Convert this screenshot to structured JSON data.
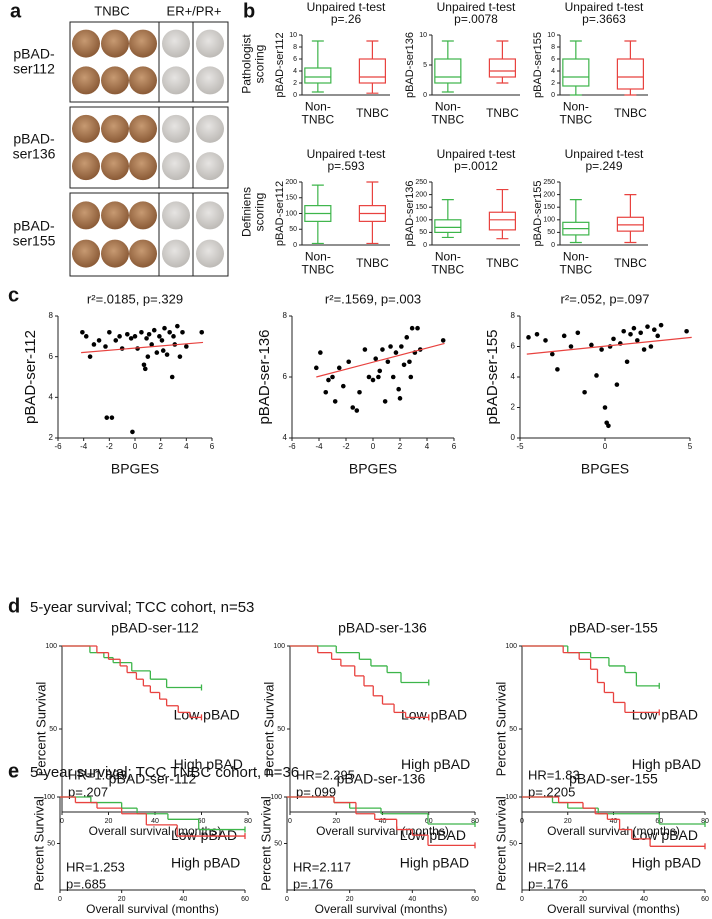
{
  "panels": {
    "a": {
      "label": "a",
      "col_headers": [
        "TNBC",
        "ER+/PR+"
      ],
      "rows": [
        "pBAD-\nser112",
        "pBAD-\nser136",
        "pBAD-\nser155"
      ]
    },
    "b": {
      "label": "b",
      "row_labels": [
        "Pathologist\nscoring",
        "Definiens\nscoring"
      ]
    },
    "c": {
      "label": "c"
    },
    "d": {
      "label": "d",
      "heading": "5-year survival; TCC cohort, n=53"
    },
    "e": {
      "label": "e",
      "heading": "5-year survival; TCC TNBC cohort, n=36"
    }
  },
  "chart_data": [
    {
      "type": "box",
      "title": "Unpaired t-test",
      "subtitle": "p=.26",
      "ylabel": "pBAD-ser112",
      "categories": [
        "Non-\nTNBC",
        "TNBC"
      ],
      "boxes": [
        {
          "min": 0.5,
          "q1": 2,
          "median": 3,
          "q3": 4.5,
          "max": 9,
          "color": "#3db54a"
        },
        {
          "min": 0.3,
          "q1": 2,
          "median": 3,
          "q3": 6,
          "max": 9,
          "color": "#e8423f"
        }
      ],
      "ylim": [
        0,
        10
      ],
      "yticks": [
        0,
        2,
        4,
        6,
        8,
        10
      ]
    },
    {
      "type": "box",
      "title": "Unpaired t-test",
      "subtitle": "p=.0078",
      "ylabel": "pBAD-ser136",
      "categories": [
        "Non-\nTNBC",
        "TNBC"
      ],
      "boxes": [
        {
          "min": 0.5,
          "q1": 2,
          "median": 3,
          "q3": 6,
          "max": 9,
          "color": "#3db54a"
        },
        {
          "min": 2,
          "q1": 3,
          "median": 4,
          "q3": 6,
          "max": 9,
          "color": "#e8423f"
        }
      ],
      "ylim": [
        0,
        10
      ],
      "yticks": [
        0,
        5,
        10
      ]
    },
    {
      "type": "box",
      "title": "Unpaired t-test",
      "subtitle": "p=.3663",
      "ylabel": "pBAD-ser155",
      "categories": [
        "Non-\nTNBC",
        "TNBC"
      ],
      "boxes": [
        {
          "min": 0,
          "q1": 1.5,
          "median": 3,
          "q3": 6,
          "max": 9,
          "color": "#3db54a"
        },
        {
          "min": 0,
          "q1": 1,
          "median": 3,
          "q3": 6,
          "max": 9,
          "color": "#e8423f"
        }
      ],
      "ylim": [
        0,
        10
      ],
      "yticks": [
        0,
        2,
        4,
        6,
        8,
        10
      ]
    },
    {
      "type": "box",
      "title": "Unpaired t-test",
      "subtitle": "p=.593",
      "ylabel": "pBAD-ser112",
      "categories": [
        "Non-\nTNBC",
        "TNBC"
      ],
      "boxes": [
        {
          "min": 5,
          "q1": 75,
          "median": 100,
          "q3": 125,
          "max": 190,
          "color": "#3db54a"
        },
        {
          "min": 5,
          "q1": 75,
          "median": 100,
          "q3": 125,
          "max": 200,
          "color": "#e8423f"
        }
      ],
      "ylim": [
        0,
        200
      ],
      "yticks": [
        0,
        50,
        100,
        150,
        200
      ]
    },
    {
      "type": "box",
      "title": "Unpaired t-test",
      "subtitle": "p=.0012",
      "ylabel": "pBAD-ser136",
      "categories": [
        "Non-\nTNBC",
        "TNBC"
      ],
      "boxes": [
        {
          "min": 30,
          "q1": 50,
          "median": 70,
          "q3": 100,
          "max": 180,
          "color": "#3db54a"
        },
        {
          "min": 25,
          "q1": 60,
          "median": 100,
          "q3": 130,
          "max": 220,
          "color": "#e8423f"
        }
      ],
      "ylim": [
        0,
        250
      ],
      "yticks": [
        0,
        50,
        100,
        150,
        200,
        250
      ]
    },
    {
      "type": "box",
      "title": "Unpaired t-test",
      "subtitle": "p=.249",
      "ylabel": "pBAD-ser155",
      "categories": [
        "Non-\nTNBC",
        "TNBC"
      ],
      "boxes": [
        {
          "min": 10,
          "q1": 40,
          "median": 65,
          "q3": 90,
          "max": 180,
          "color": "#3db54a"
        },
        {
          "min": 10,
          "q1": 55,
          "median": 80,
          "q3": 110,
          "max": 200,
          "color": "#e8423f"
        }
      ],
      "ylim": [
        0,
        250
      ],
      "yticks": [
        0,
        50,
        100,
        150,
        200,
        250
      ]
    },
    {
      "type": "scatter",
      "title": "r²=.0185, p=.329",
      "xlabel": "BPGES",
      "ylabel": "pBAD-ser-112",
      "color": "#000000",
      "x": [
        -4.1,
        -3.8,
        -3.5,
        -3.2,
        -2.8,
        -2.3,
        -2,
        -1.5,
        -1.2,
        -1,
        -0.6,
        -0.3,
        0,
        0.2,
        0.5,
        0.7,
        0.9,
        1.1,
        1.3,
        1.5,
        1.7,
        1.9,
        2.1,
        2.3,
        2.5,
        2.7,
        2.9,
        3.1,
        3.3,
        3.5,
        3.7,
        4,
        5.2,
        -2.2,
        -1.8,
        -0.2,
        0.8,
        2.2,
        3,
        1
      ],
      "values": [
        7.2,
        7,
        6,
        6.6,
        6.8,
        6.5,
        7.2,
        6.8,
        7,
        6.4,
        7.1,
        6.9,
        7,
        6.4,
        7.2,
        5.6,
        6.9,
        7.1,
        6.6,
        7.3,
        6.2,
        7,
        6.8,
        7.4,
        6.1,
        7.2,
        5,
        6.6,
        7.5,
        6,
        7.2,
        6.5,
        7.2,
        3,
        3,
        2.3,
        5.4,
        6.3,
        7,
        6
      ],
      "trendline": {
        "x": [
          -4.2,
          5.3
        ],
        "values": [
          6.2,
          6.7
        ],
        "color": "#e8423f"
      },
      "xlim": [
        -6,
        6
      ],
      "xticks": [
        -6,
        -4,
        -2,
        0,
        2,
        4,
        6
      ],
      "ylim": [
        2,
        8
      ],
      "yticks": [
        2,
        4,
        6,
        8
      ]
    },
    {
      "type": "scatter",
      "title": "r²=.1569, p=.003",
      "xlabel": "BPGES",
      "ylabel": "pBAD-ser-136",
      "color": "#000000",
      "x": [
        -4.2,
        -3.9,
        -3.5,
        -3.3,
        -3,
        -2.8,
        -2.5,
        -2.2,
        -1.8,
        -1.5,
        -1.2,
        -1,
        -0.6,
        -0.3,
        0,
        0.2,
        0.5,
        0.7,
        0.9,
        1.1,
        1.3,
        1.5,
        1.7,
        1.9,
        2.1,
        2.3,
        2.5,
        2.7,
        2.9,
        3.1,
        3.3,
        3.5,
        5.2,
        0.4,
        2,
        2.8
      ],
      "values": [
        6.3,
        6.8,
        5.5,
        5.9,
        6,
        5.2,
        6.3,
        5.7,
        6.5,
        5,
        4.9,
        5.5,
        6.9,
        6,
        5.9,
        6.6,
        6.2,
        6.9,
        5.2,
        6.5,
        7,
        6,
        6.8,
        5.6,
        7,
        6.4,
        7.3,
        6.5,
        7.6,
        6.8,
        7.6,
        6.9,
        7.2,
        6,
        5.3,
        6
      ],
      "trendline": {
        "x": [
          -4.2,
          5.3
        ],
        "values": [
          6,
          7.1
        ],
        "color": "#e8423f"
      },
      "xlim": [
        -6,
        6
      ],
      "xticks": [
        -6,
        -4,
        -2,
        0,
        2,
        4,
        6
      ],
      "ylim": [
        4,
        8
      ],
      "yticks": [
        4,
        6,
        8
      ]
    },
    {
      "type": "scatter",
      "title": "r²=.052, p=.097",
      "xlabel": "BPGES",
      "ylabel": "pBAD-ser-155",
      "color": "#000000",
      "x": [
        -4.5,
        -4,
        -3.5,
        -3.1,
        -2.8,
        -2.4,
        -2,
        -1.6,
        -1.2,
        -0.8,
        -0.5,
        -0.2,
        0,
        0.1,
        0.3,
        0.5,
        0.7,
        0.9,
        1.1,
        1.3,
        1.5,
        1.7,
        1.9,
        2.1,
        2.3,
        2.5,
        2.7,
        2.9,
        3.1,
        3.3,
        4.8,
        0.2
      ],
      "values": [
        6.6,
        6.8,
        6.4,
        5.5,
        4.5,
        6.7,
        6,
        6.9,
        3,
        6.1,
        4.1,
        5.8,
        2,
        1,
        6,
        6.5,
        3.5,
        6.2,
        7,
        5,
        6.8,
        7.2,
        6.4,
        6.9,
        5.8,
        7.3,
        6,
        7.1,
        6.7,
        7.4,
        7,
        0.8
      ],
      "trendline": {
        "x": [
          -4.6,
          5.1
        ],
        "values": [
          5.5,
          6.6
        ],
        "color": "#e8423f"
      },
      "xlim": [
        -5,
        5
      ],
      "xticks": [
        -5,
        0,
        5
      ],
      "ylim": [
        0,
        8
      ],
      "yticks": [
        0,
        2,
        4,
        6,
        8
      ]
    },
    {
      "type": "step",
      "title": "pBAD-ser-112",
      "xlabel": "Overall survival (months)",
      "ylabel": "Percent Survival",
      "annotations": [
        "HR=1.893",
        "p=.207"
      ],
      "xlim": [
        0,
        80
      ],
      "xticks": [
        0,
        20,
        40,
        60,
        80
      ],
      "ylim": [
        0,
        100
      ],
      "yticks": [
        50,
        100
      ],
      "series": [
        {
          "name": "Low pBAD",
          "color": "#3db54a",
          "x": [
            0,
            12,
            18,
            22,
            30,
            38,
            45,
            60
          ],
          "values": [
            100,
            96,
            93,
            90,
            85,
            80,
            75,
            75
          ]
        },
        {
          "name": "High pBAD",
          "color": "#e8423f",
          "x": [
            0,
            15,
            20,
            25,
            28,
            32,
            35,
            38,
            42,
            45,
            50,
            55,
            60
          ],
          "values": [
            100,
            96,
            92,
            88,
            84,
            80,
            76,
            72,
            68,
            64,
            60,
            57,
            57
          ]
        }
      ]
    },
    {
      "type": "step",
      "title": "pBAD-ser-136",
      "xlabel": "Overall survival (months)",
      "ylabel": "Percent Survival",
      "annotations": [
        "HR=2.295",
        "p=.099"
      ],
      "xlim": [
        0,
        80
      ],
      "xticks": [
        0,
        20,
        40,
        60,
        80
      ],
      "ylim": [
        0,
        100
      ],
      "yticks": [
        50,
        100
      ],
      "series": [
        {
          "name": "Low pBAD",
          "color": "#3db54a",
          "x": [
            0,
            20,
            30,
            35,
            42,
            48,
            60
          ],
          "values": [
            100,
            96,
            92,
            88,
            84,
            78,
            78
          ]
        },
        {
          "name": "High pBAD",
          "color": "#e8423f",
          "x": [
            0,
            12,
            18,
            22,
            28,
            32,
            36,
            40,
            45,
            50,
            60
          ],
          "values": [
            100,
            96,
            92,
            88,
            82,
            76,
            70,
            65,
            60,
            57,
            57
          ]
        }
      ]
    },
    {
      "type": "step",
      "title": "pBAD-ser-155",
      "xlabel": "Overall survival (months)",
      "ylabel": "Percent Survival",
      "annotations": [
        "HR=1.83",
        "p=.2205"
      ],
      "xlim": [
        0,
        80
      ],
      "xticks": [
        0,
        20,
        40,
        60,
        80
      ],
      "ylim": [
        0,
        100
      ],
      "yticks": [
        50,
        100
      ],
      "series": [
        {
          "name": "Low pBAD",
          "color": "#3db54a",
          "x": [
            0,
            20,
            30,
            38,
            45,
            50,
            60
          ],
          "values": [
            100,
            96,
            93,
            88,
            84,
            76,
            76
          ]
        },
        {
          "name": "High pBAD",
          "color": "#e8423f",
          "x": [
            0,
            18,
            25,
            30,
            33,
            36,
            40,
            45,
            60
          ],
          "values": [
            100,
            96,
            92,
            86,
            78,
            72,
            66,
            60,
            60
          ]
        }
      ]
    },
    {
      "type": "step",
      "title": "pBAD-ser-112",
      "xlabel": "Overall survival (months)",
      "ylabel": "Percent Survival",
      "annotations": [
        "HR=1.253",
        "p=.685"
      ],
      "xlim": [
        0,
        60
      ],
      "xticks": [
        0,
        20,
        40,
        60
      ],
      "ylim": [
        0,
        100
      ],
      "yticks": [
        50,
        100
      ],
      "series": [
        {
          "name": "Low pBAD",
          "color": "#3db54a",
          "x": [
            0,
            10,
            20,
            25,
            35,
            45,
            60
          ],
          "values": [
            100,
            94,
            88,
            82,
            76,
            65,
            65
          ]
        },
        {
          "name": "High pBAD",
          "color": "#e8423f",
          "x": [
            0,
            5,
            12,
            20,
            28,
            38,
            60
          ],
          "values": [
            100,
            94,
            88,
            82,
            70,
            58,
            58
          ]
        }
      ]
    },
    {
      "type": "step",
      "title": "pBAD-ser-136",
      "xlabel": "Overall survival (months)",
      "ylabel": "Percent Survival",
      "annotations": [
        "HR=2.117",
        "p=.176"
      ],
      "xlim": [
        0,
        60
      ],
      "xticks": [
        0,
        20,
        40,
        60
      ],
      "ylim": [
        0,
        100
      ],
      "yticks": [
        50,
        100
      ],
      "series": [
        {
          "name": "Low pBAD",
          "color": "#3db54a",
          "x": [
            0,
            15,
            20,
            30,
            45,
            60
          ],
          "values": [
            100,
            94,
            88,
            82,
            71,
            71
          ]
        },
        {
          "name": "High pBAD",
          "color": "#e8423f",
          "x": [
            0,
            15,
            22,
            28,
            35,
            40,
            45,
            60
          ],
          "values": [
            100,
            94,
            82,
            76,
            65,
            59,
            48,
            48
          ]
        }
      ]
    },
    {
      "type": "step",
      "title": "pBAD-ser-155",
      "xlabel": "Overall survival (months)",
      "ylabel": "Percent Survival",
      "annotations": [
        "HR=2.114",
        "p=.176"
      ],
      "xlim": [
        0,
        60
      ],
      "xticks": [
        0,
        20,
        40,
        60
      ],
      "ylim": [
        0,
        100
      ],
      "yticks": [
        50,
        100
      ],
      "series": [
        {
          "name": "Low pBAD",
          "color": "#3db54a",
          "x": [
            0,
            10,
            15,
            25,
            45,
            60
          ],
          "values": [
            100,
            94,
            88,
            82,
            71,
            71
          ]
        },
        {
          "name": "High pBAD",
          "color": "#e8423f",
          "x": [
            0,
            12,
            20,
            24,
            28,
            32,
            36,
            42,
            60
          ],
          "values": [
            100,
            94,
            88,
            82,
            76,
            65,
            55,
            47,
            47
          ]
        }
      ]
    }
  ]
}
